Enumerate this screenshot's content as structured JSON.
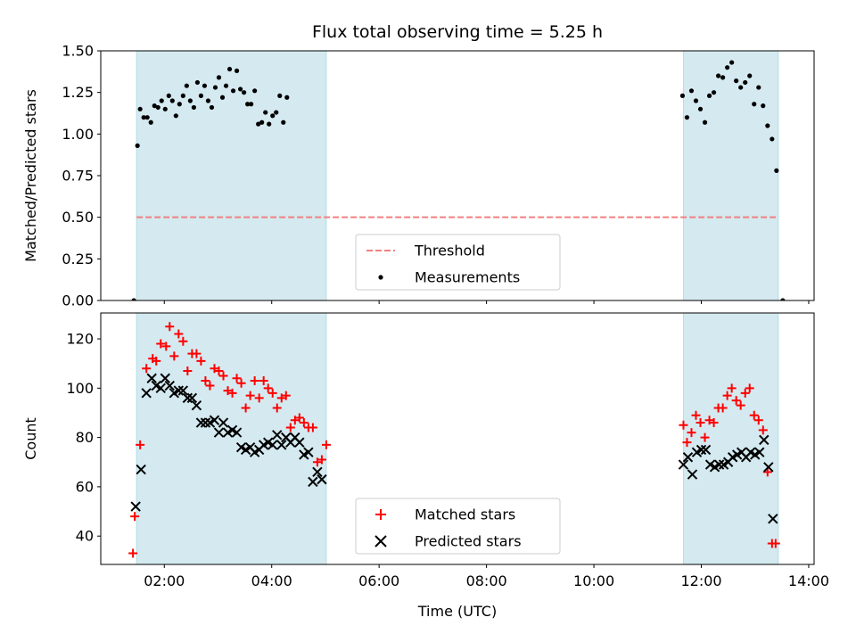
{
  "chart_data": [
    {
      "type": "scatter",
      "title": "Flux total observing time = 5.25 h",
      "ylabel": "Matched/Predicted stars",
      "ylim": [
        0,
        1.5
      ],
      "yticks": [
        "0.00",
        "0.25",
        "0.50",
        "0.75",
        "1.00",
        "1.25",
        "1.50"
      ],
      "xlim": [
        "00:49",
        "14:06"
      ],
      "grid": false,
      "legend_position": "lower center",
      "shaded_intervals": [
        [
          "01:29",
          "05:01"
        ],
        [
          "11:40",
          "13:26"
        ]
      ],
      "threshold": {
        "name": "Threshold",
        "value": 0.5,
        "color": "#f08080",
        "style": "dashed"
      },
      "series": [
        {
          "name": "Measurements",
          "color": "#000000",
          "marker": "dot",
          "points": [
            [
              "01:26",
              0.0
            ],
            [
              "01:30",
              0.93
            ],
            [
              "01:33",
              1.15
            ],
            [
              "01:37",
              1.1
            ],
            [
              "01:41",
              1.1
            ],
            [
              "01:45",
              1.07
            ],
            [
              "01:49",
              1.17
            ],
            [
              "01:53",
              1.16
            ],
            [
              "01:57",
              1.2
            ],
            [
              "02:01",
              1.15
            ],
            [
              "02:05",
              1.23
            ],
            [
              "02:09",
              1.2
            ],
            [
              "02:13",
              1.11
            ],
            [
              "02:17",
              1.18
            ],
            [
              "02:21",
              1.23
            ],
            [
              "02:25",
              1.29
            ],
            [
              "02:29",
              1.2
            ],
            [
              "02:33",
              1.16
            ],
            [
              "02:37",
              1.31
            ],
            [
              "02:41",
              1.23
            ],
            [
              "02:45",
              1.29
            ],
            [
              "02:49",
              1.2
            ],
            [
              "02:53",
              1.16
            ],
            [
              "02:57",
              1.28
            ],
            [
              "03:01",
              1.34
            ],
            [
              "03:05",
              1.22
            ],
            [
              "03:09",
              1.29
            ],
            [
              "03:13",
              1.39
            ],
            [
              "03:17",
              1.26
            ],
            [
              "03:21",
              1.38
            ],
            [
              "03:25",
              1.27
            ],
            [
              "03:29",
              1.25
            ],
            [
              "03:33",
              1.18
            ],
            [
              "03:37",
              1.18
            ],
            [
              "03:41",
              1.26
            ],
            [
              "03:45",
              1.06
            ],
            [
              "03:49",
              1.07
            ],
            [
              "03:53",
              1.13
            ],
            [
              "03:57",
              1.06
            ],
            [
              "04:01",
              1.11
            ],
            [
              "04:05",
              1.13
            ],
            [
              "04:09",
              1.23
            ],
            [
              "04:13",
              1.07
            ],
            [
              "04:17",
              1.22
            ],
            [
              "11:39",
              1.23
            ],
            [
              "11:44",
              1.1
            ],
            [
              "11:49",
              1.26
            ],
            [
              "11:54",
              1.2
            ],
            [
              "11:59",
              1.15
            ],
            [
              "12:04",
              1.07
            ],
            [
              "12:09",
              1.23
            ],
            [
              "12:14",
              1.25
            ],
            [
              "12:19",
              1.35
            ],
            [
              "12:24",
              1.34
            ],
            [
              "12:29",
              1.4
            ],
            [
              "12:34",
              1.43
            ],
            [
              "12:39",
              1.32
            ],
            [
              "12:44",
              1.28
            ],
            [
              "12:49",
              1.31
            ],
            [
              "12:54",
              1.35
            ],
            [
              "12:59",
              1.18
            ],
            [
              "13:04",
              1.28
            ],
            [
              "13:09",
              1.17
            ],
            [
              "13:14",
              1.05
            ],
            [
              "13:19",
              0.97
            ],
            [
              "13:24",
              0.78
            ],
            [
              "13:31",
              0.0
            ]
          ]
        }
      ]
    },
    {
      "type": "scatter",
      "ylabel": "Count",
      "xlabel": "Time (UTC)",
      "ylim": [
        28.5,
        130.5
      ],
      "yticks": [
        "40",
        "60",
        "80",
        "100",
        "120"
      ],
      "xticks": [
        "02:00",
        "04:00",
        "06:00",
        "08:00",
        "10:00",
        "12:00",
        "14:00"
      ],
      "xlim": [
        "00:49",
        "14:06"
      ],
      "grid": false,
      "legend_position": "lower center",
      "shaded_intervals": [
        [
          "01:29",
          "05:01"
        ],
        [
          "11:40",
          "13:26"
        ]
      ],
      "series": [
        {
          "name": "Matched stars",
          "color": "#ff0000",
          "marker": "plus",
          "points": [
            [
              "01:25",
              33
            ],
            [
              "01:27",
              48
            ],
            [
              "01:33",
              77
            ],
            [
              "01:40",
              108
            ],
            [
              "01:47",
              112
            ],
            [
              "01:51",
              111
            ],
            [
              "01:56",
              118
            ],
            [
              "02:02",
              117
            ],
            [
              "02:06",
              125
            ],
            [
              "02:11",
              113
            ],
            [
              "02:16",
              122
            ],
            [
              "02:21",
              119
            ],
            [
              "02:26",
              107
            ],
            [
              "02:31",
              114
            ],
            [
              "02:36",
              114
            ],
            [
              "02:41",
              111
            ],
            [
              "02:46",
              103
            ],
            [
              "02:51",
              101
            ],
            [
              "02:56",
              108
            ],
            [
              "03:01",
              107
            ],
            [
              "03:06",
              105
            ],
            [
              "03:11",
              99
            ],
            [
              "03:16",
              98
            ],
            [
              "03:21",
              104
            ],
            [
              "03:26",
              102
            ],
            [
              "03:31",
              92
            ],
            [
              "03:36",
              97
            ],
            [
              "03:41",
              103
            ],
            [
              "03:46",
              96
            ],
            [
              "03:51",
              103
            ],
            [
              "03:56",
              100
            ],
            [
              "04:01",
              98
            ],
            [
              "04:06",
              92
            ],
            [
              "04:11",
              96
            ],
            [
              "04:16",
              97
            ],
            [
              "04:21",
              84
            ],
            [
              "04:26",
              87
            ],
            [
              "04:31",
              88
            ],
            [
              "04:36",
              86
            ],
            [
              "04:41",
              84
            ],
            [
              "04:46",
              84
            ],
            [
              "04:51",
              70
            ],
            [
              "04:56",
              71
            ],
            [
              "05:01",
              77
            ],
            [
              "11:40",
              85
            ],
            [
              "11:44",
              78
            ],
            [
              "11:49",
              82
            ],
            [
              "11:54",
              89
            ],
            [
              "11:59",
              86
            ],
            [
              "12:04",
              80
            ],
            [
              "12:09",
              87
            ],
            [
              "12:14",
              86
            ],
            [
              "12:19",
              92
            ],
            [
              "12:24",
              92
            ],
            [
              "12:29",
              97
            ],
            [
              "12:34",
              100
            ],
            [
              "12:39",
              95
            ],
            [
              "12:44",
              93
            ],
            [
              "12:49",
              98
            ],
            [
              "12:54",
              100
            ],
            [
              "12:59",
              89
            ],
            [
              "13:04",
              87
            ],
            [
              "13:09",
              83
            ],
            [
              "13:14",
              66
            ],
            [
              "13:19",
              37
            ],
            [
              "13:23",
              37
            ]
          ]
        },
        {
          "name": "Predicted stars",
          "color": "#000000",
          "marker": "x",
          "points": [
            [
              "01:28",
              52
            ],
            [
              "01:34",
              67
            ],
            [
              "01:40",
              98
            ],
            [
              "01:46",
              104
            ],
            [
              "01:51",
              101
            ],
            [
              "01:56",
              100
            ],
            [
              "02:01",
              104
            ],
            [
              "02:06",
              101
            ],
            [
              "02:11",
              98
            ],
            [
              "02:16",
              99
            ],
            [
              "02:21",
              99
            ],
            [
              "02:26",
              96
            ],
            [
              "02:31",
              96
            ],
            [
              "02:36",
              93
            ],
            [
              "02:41",
              86
            ],
            [
              "02:46",
              86
            ],
            [
              "02:51",
              86
            ],
            [
              "02:56",
              87
            ],
            [
              "03:01",
              82
            ],
            [
              "03:06",
              86
            ],
            [
              "03:11",
              82
            ],
            [
              "03:16",
              83
            ],
            [
              "03:21",
              82
            ],
            [
              "03:26",
              76
            ],
            [
              "03:31",
              75
            ],
            [
              "03:36",
              76
            ],
            [
              "03:41",
              74
            ],
            [
              "03:46",
              75
            ],
            [
              "03:51",
              77
            ],
            [
              "03:56",
              78
            ],
            [
              "04:01",
              77
            ],
            [
              "04:06",
              81
            ],
            [
              "04:11",
              77
            ],
            [
              "04:16",
              80
            ],
            [
              "04:21",
              78
            ],
            [
              "04:26",
              80
            ],
            [
              "04:31",
              78
            ],
            [
              "04:36",
              73
            ],
            [
              "04:41",
              74
            ],
            [
              "04:46",
              62
            ],
            [
              "04:51",
              66
            ],
            [
              "04:56",
              63
            ],
            [
              "11:40",
              69
            ],
            [
              "11:45",
              72
            ],
            [
              "11:50",
              65
            ],
            [
              "11:55",
              74
            ],
            [
              "12:00",
              75
            ],
            [
              "12:05",
              75
            ],
            [
              "12:10",
              69
            ],
            [
              "12:15",
              68
            ],
            [
              "12:20",
              69
            ],
            [
              "12:25",
              69
            ],
            [
              "12:30",
              70
            ],
            [
              "12:35",
              72
            ],
            [
              "12:40",
              73
            ],
            [
              "12:45",
              74
            ],
            [
              "12:50",
              72
            ],
            [
              "12:55",
              74
            ],
            [
              "13:00",
              73
            ],
            [
              "13:05",
              74
            ],
            [
              "13:10",
              79
            ],
            [
              "13:15",
              68
            ],
            [
              "13:20",
              47
            ]
          ]
        }
      ]
    }
  ]
}
